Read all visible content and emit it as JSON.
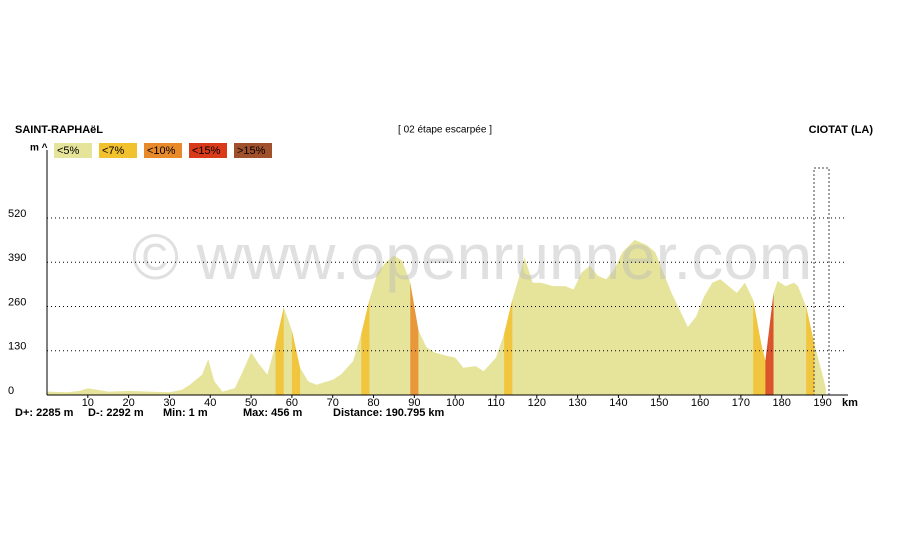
{
  "chart_data": {
    "type": "area",
    "title_left": "SAINT-RAPHAëL",
    "title": "[ 02 étape escarpée ]",
    "title_right": "CIOTAT (LA)",
    "watermark": "© www.openrunner.com",
    "ylabel": "m ^",
    "xlabel": "km",
    "legend": [
      {
        "value": 5,
        "label": "<5%",
        "color": "#e6e49a"
      },
      {
        "value": 7,
        "label": "<7%",
        "color": "#f2c12e"
      },
      {
        "value": 10,
        "label": "<10%",
        "color": "#e8892a"
      },
      {
        "value": 15,
        "label": "<15%",
        "color": "#d83a1a"
      },
      {
        "value": 15,
        "label": ">15%",
        "color": "#a0502a"
      }
    ],
    "stats": [
      "D+: 2285 m",
      "D-: 2292 m",
      "Min: 1 m",
      "Max: 456 m",
      "Distance: 190.795 km"
    ],
    "x": [
      0,
      5,
      8,
      10,
      15,
      20,
      25,
      30,
      33,
      35,
      38,
      39.5,
      41,
      43,
      46,
      48,
      50,
      52,
      54,
      56,
      58,
      60,
      62,
      64,
      66,
      70,
      72,
      75,
      77,
      79,
      81,
      83,
      85,
      87,
      89,
      91,
      93,
      95,
      98,
      100,
      102,
      105,
      107,
      110,
      112,
      114,
      116,
      117,
      119,
      121,
      124,
      127,
      129,
      131,
      133,
      135,
      137,
      139,
      141,
      144,
      147,
      149,
      151,
      153,
      155,
      157,
      159,
      161,
      163,
      165,
      167,
      169,
      171,
      173,
      175,
      176,
      177,
      178,
      179,
      181,
      183,
      184,
      186,
      188,
      190,
      190.8
    ],
    "values": [
      10,
      8,
      12,
      20,
      10,
      12,
      10,
      8,
      15,
      30,
      60,
      105,
      40,
      10,
      20,
      70,
      125,
      90,
      60,
      150,
      257,
      190,
      80,
      40,
      30,
      45,
      60,
      100,
      180,
      280,
      360,
      390,
      410,
      395,
      330,
      190,
      140,
      125,
      115,
      110,
      80,
      85,
      70,
      110,
      180,
      280,
      360,
      404,
      330,
      330,
      320,
      320,
      310,
      360,
      380,
      350,
      340,
      370,
      420,
      456,
      440,
      420,
      360,
      300,
      250,
      200,
      230,
      290,
      330,
      340,
      320,
      300,
      330,
      280,
      150,
      100,
      200,
      300,
      335,
      320,
      330,
      320,
      260,
      150,
      60,
      20
    ],
    "xlim": [
      0,
      196
    ],
    "ylim": [
      0,
      720
    ],
    "xticks": [
      10,
      20,
      30,
      40,
      50,
      60,
      70,
      80,
      90,
      100,
      110,
      120,
      130,
      140,
      150,
      160,
      170,
      180,
      190
    ],
    "yticks": [
      0,
      130,
      260,
      390,
      520
    ],
    "grid": true
  }
}
